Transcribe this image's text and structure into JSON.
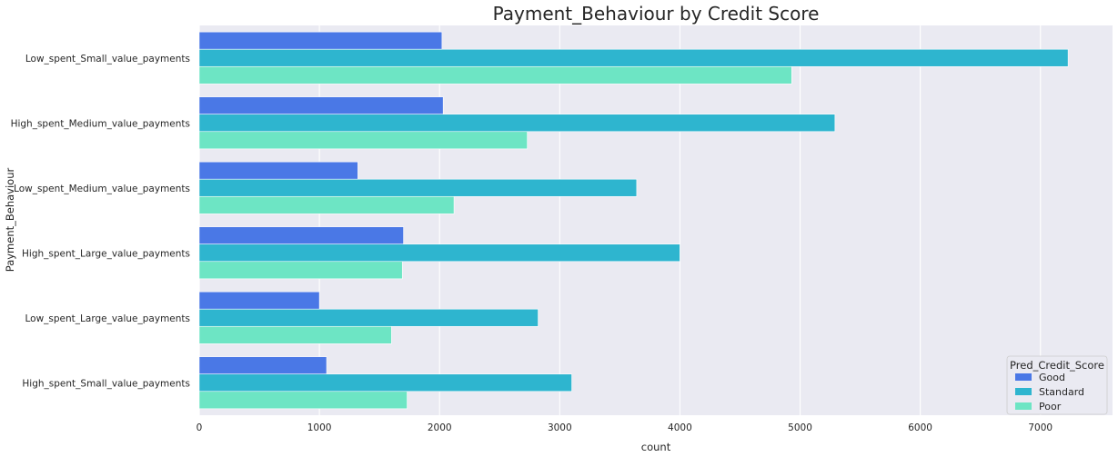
{
  "chart_data": {
    "type": "bar",
    "orientation": "horizontal",
    "title": "Payment_Behaviour by Credit Score",
    "xlabel": "count",
    "ylabel": "Payment_Behaviour",
    "xlim": [
      0,
      7600
    ],
    "xticks": [
      0,
      1000,
      2000,
      3000,
      4000,
      5000,
      6000,
      7000
    ],
    "grid": true,
    "legend": {
      "title": "Pred_Credit_Score",
      "placement": "bottom-right"
    },
    "categories": [
      "Low_spent_Small_value_payments",
      "High_spent_Medium_value_payments",
      "Low_spent_Medium_value_payments",
      "High_spent_Large_value_payments",
      "Low_spent_Large_value_payments",
      "High_spent_Small_value_payments"
    ],
    "series": [
      {
        "name": "Good",
        "color": "#4a78e6",
        "values": [
          2020,
          2030,
          1320,
          1700,
          1000,
          1060
        ]
      },
      {
        "name": "Standard",
        "color": "#2eb5cf",
        "values": [
          7230,
          5290,
          3640,
          4000,
          2820,
          3100
        ]
      },
      {
        "name": "Poor",
        "color": "#6de5c4",
        "values": [
          4930,
          2730,
          2120,
          1690,
          1600,
          1730
        ]
      }
    ]
  },
  "colors": {
    "plot_background": "#eaeaf2",
    "grid": "#ffffff"
  }
}
